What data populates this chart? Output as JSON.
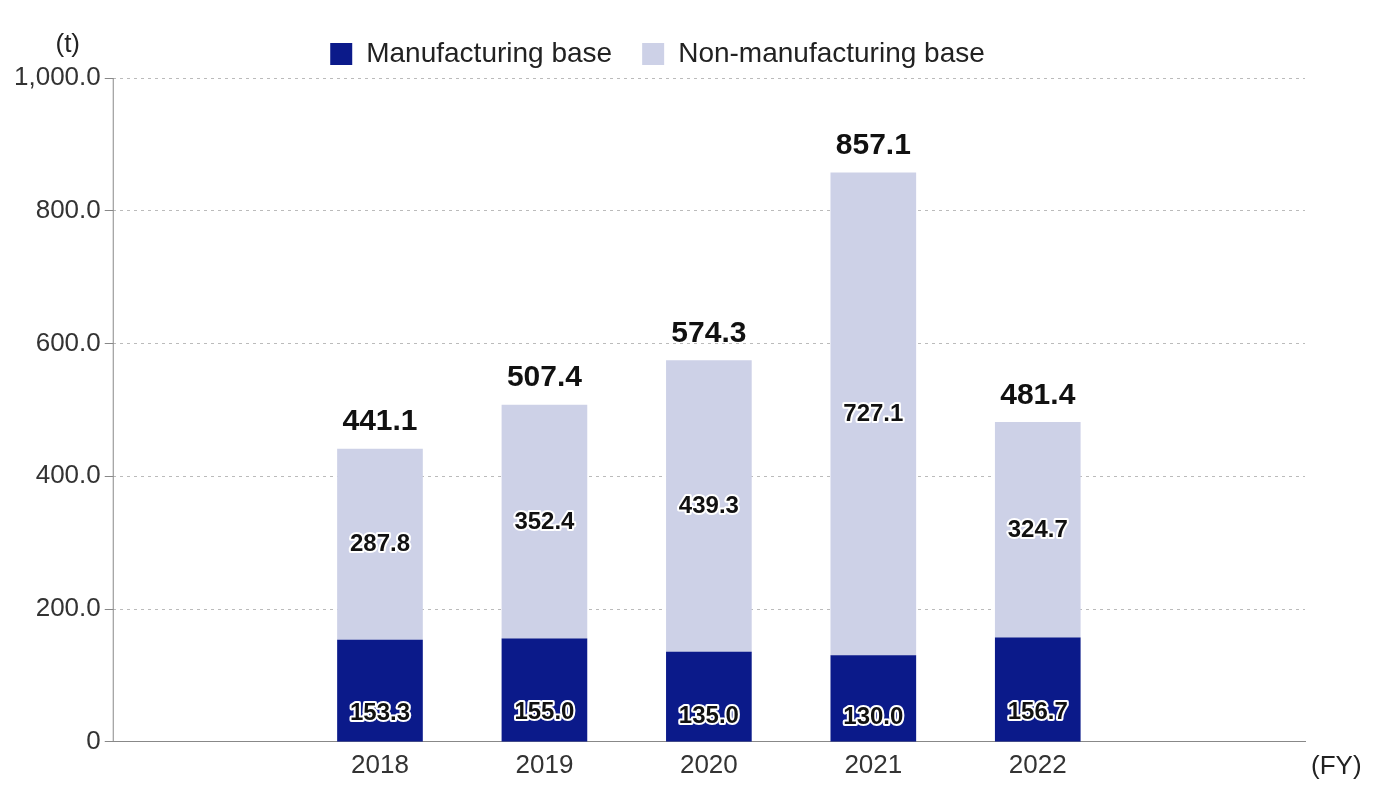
{
  "chart_data": {
    "type": "bar",
    "stacked": true,
    "ylabel": "(t)",
    "annotations": [
      "(FY)"
    ],
    "categories": [
      "2018",
      "2019",
      "2020",
      "2021",
      "2022"
    ],
    "series": [
      {
        "name": "Manufacturing base",
        "color": "#0b1a8a",
        "values": [
          153.3,
          155.0,
          135.0,
          130.0,
          156.7
        ],
        "value_labels": [
          "153.3",
          "155.0",
          "135.0",
          "130.0",
          "156.7"
        ]
      },
      {
        "name": "Non-manufacturing base",
        "color": "#cdd1e7",
        "values": [
          287.8,
          352.4,
          439.3,
          727.1,
          324.7
        ],
        "value_labels": [
          "287.8",
          "352.4",
          "439.3",
          "727.1",
          "324.7"
        ]
      }
    ],
    "totals": [
      "441.1",
      "507.4",
      "574.3",
      "857.1",
      "481.4"
    ],
    "ylim": [
      0,
      1000
    ],
    "yticks": [
      0,
      {
        "value": 200,
        "label": "200.0"
      },
      {
        "value": 400,
        "label": "400.0"
      },
      {
        "value": 600,
        "label": "600.0"
      },
      {
        "value": 800,
        "label": "800.0"
      },
      {
        "value": 1000,
        "label": "1,000.0"
      }
    ],
    "grid": "y",
    "legend": "top"
  }
}
